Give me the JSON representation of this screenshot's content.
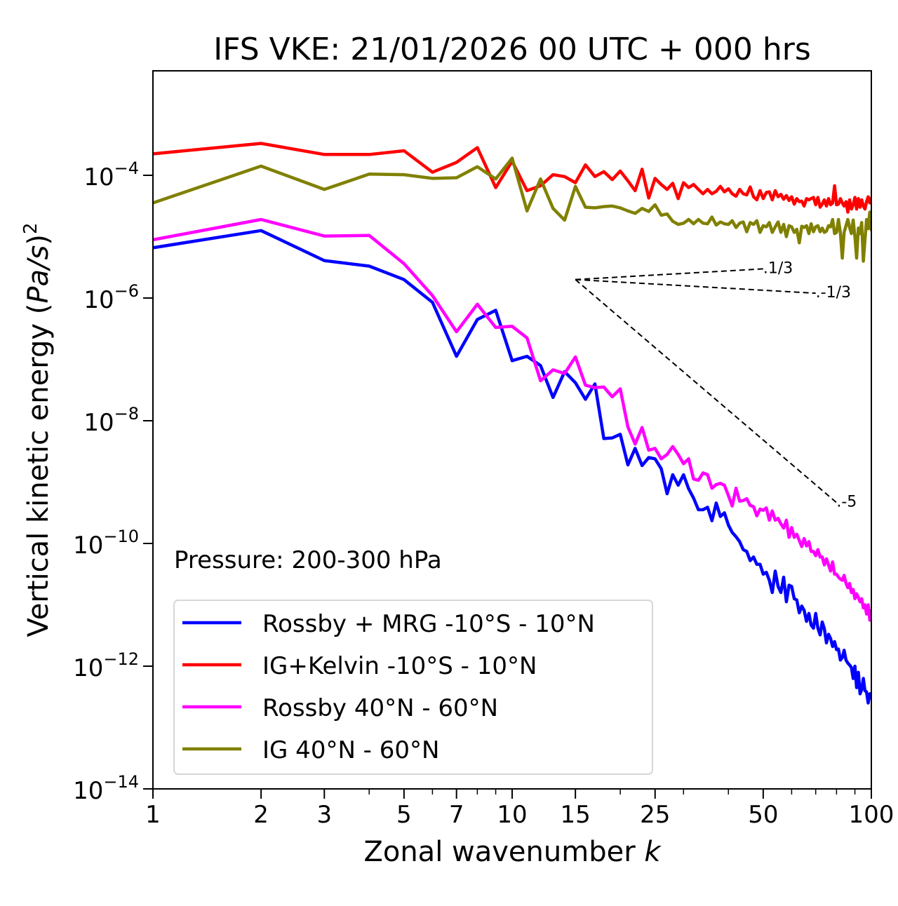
{
  "chart_data": {
    "type": "line",
    "title": "IFS VKE: 21/01/2026 00 UTC + 000 hrs",
    "xlabel": "Zonal wavenumber k",
    "xlabel_prefix": "Zonal wavenumber ",
    "xlabel_var": "k",
    "ylabel_prefix": "Vertical kinetic energy (",
    "ylabel_var": "Pa/s",
    "ylabel_suffix": ")",
    "ylabel_power": "2",
    "xscale": "log",
    "yscale": "log",
    "xlim": [
      1,
      100
    ],
    "ylim": [
      1e-14,
      0.01
    ],
    "grid": false,
    "xticks": [
      1,
      2,
      3,
      5,
      7,
      10,
      15,
      25,
      50,
      100
    ],
    "xtick_labels": [
      "1",
      "2",
      "3",
      "5",
      "7",
      "10",
      "15",
      "25",
      "50",
      "100"
    ],
    "yticks_exp": [
      -4,
      -6,
      -8,
      -10,
      -12,
      -14
    ],
    "ytick_base": "10",
    "annotation": "Pressure: 200-300 hPa",
    "legend_placement": "lower-left",
    "reference_lines": [
      {
        "label": "1/3",
        "slope": 0.3333,
        "k_start": 15,
        "k_end": 50,
        "E_start": 2e-06
      },
      {
        "label": "-1/3",
        "slope": -0.3333,
        "k_start": 15,
        "k_end": 70,
        "E_start": 2e-06
      },
      {
        "label": "-5",
        "slope": -5,
        "k_start": 15,
        "k_end": 80,
        "E_start": 2e-06
      }
    ],
    "x": [
      1,
      2,
      3,
      4,
      5,
      6,
      7,
      8,
      9,
      10,
      11,
      12,
      13,
      14,
      15,
      16,
      17,
      18,
      19,
      20,
      21,
      22,
      23,
      24,
      25,
      26,
      27,
      28,
      29,
      30,
      31,
      32,
      33,
      34,
      35,
      36,
      37,
      38,
      39,
      40,
      41,
      42,
      43,
      44,
      45,
      46,
      47,
      48,
      49,
      50,
      51,
      52,
      53,
      54,
      55,
      56,
      57,
      58,
      59,
      60,
      61,
      62,
      63,
      64,
      65,
      66,
      67,
      68,
      69,
      70,
      71,
      72,
      73,
      74,
      75,
      76,
      77,
      78,
      79,
      80,
      81,
      82,
      83,
      84,
      85,
      86,
      87,
      88,
      89,
      90,
      91,
      92,
      93,
      94,
      95,
      96,
      97,
      98,
      99,
      100
    ],
    "series": [
      {
        "name": "Rossby + MRG -10°S - 10°N",
        "color": "#0000ff",
        "log10_values": [
          -5.18,
          -4.9,
          -5.39,
          -5.48,
          -5.7,
          -6.07,
          -6.95,
          -6.35,
          -6.2,
          -7.02,
          -6.95,
          -7.1,
          -7.62,
          -7.2,
          -7.38,
          -7.65,
          -7.4,
          -8.29,
          -8.28,
          -8.22,
          -8.72,
          -8.45,
          -8.73,
          -8.6,
          -8.62,
          -8.78,
          -9.19,
          -8.88,
          -9.05,
          -8.88,
          -9.11,
          -9.26,
          -9.45,
          -9.45,
          -9.41,
          -9.63,
          -9.34,
          -9.56,
          -9.5,
          -9.7,
          -9.82,
          -9.89,
          -9.97,
          -10.1,
          -10.13,
          -10.28,
          -10.22,
          -10.34,
          -10.34,
          -10.5,
          -10.47,
          -10.6,
          -10.8,
          -10.45,
          -10.7,
          -10.8,
          -10.55,
          -10.95,
          -10.68,
          -10.7,
          -10.9,
          -10.92,
          -11.13,
          -11.02,
          -11.09,
          -11.27,
          -11.14,
          -11.33,
          -11.38,
          -11.14,
          -11.38,
          -11.49,
          -11.28,
          -11.39,
          -11.62,
          -11.48,
          -11.55,
          -11.68,
          -11.6,
          -11.73,
          -11.72,
          -11.9,
          -11.86,
          -11.74,
          -11.9,
          -11.95,
          -11.98,
          -12.02,
          -12.2,
          -12.0,
          -12.35,
          -12.1,
          -12.45,
          -12.38,
          -12.2,
          -12.4,
          -12.42,
          -12.6,
          -12.45,
          -12.5
        ]
      },
      {
        "name": "IG+Kelvin -10°S - 10°N",
        "color": "#ff0000",
        "log10_values": [
          -3.65,
          -3.48,
          -3.66,
          -3.66,
          -3.6,
          -3.95,
          -3.79,
          -3.55,
          -4.2,
          -3.77,
          -4.25,
          -4.17,
          -3.99,
          -4.02,
          -4.12,
          -3.83,
          -4.02,
          -3.94,
          -4.07,
          -3.93,
          -4.09,
          -4.25,
          -3.9,
          -4.37,
          -4.05,
          -4.15,
          -4.23,
          -4.13,
          -4.38,
          -4.12,
          -4.2,
          -4.15,
          -4.23,
          -4.3,
          -4.23,
          -4.3,
          -4.26,
          -4.18,
          -4.27,
          -4.22,
          -4.3,
          -4.34,
          -4.23,
          -4.3,
          -4.32,
          -4.19,
          -4.35,
          -4.4,
          -4.25,
          -4.38,
          -4.28,
          -4.27,
          -4.4,
          -4.25,
          -4.35,
          -4.31,
          -4.39,
          -4.33,
          -4.41,
          -4.35,
          -4.47,
          -4.38,
          -4.43,
          -4.42,
          -4.5,
          -4.38,
          -4.4,
          -4.38,
          -4.36,
          -4.48,
          -4.36,
          -4.52,
          -4.47,
          -4.4,
          -4.5,
          -4.38,
          -4.48,
          -4.45,
          -4.17,
          -4.48,
          -4.47,
          -4.38,
          -4.45,
          -4.5,
          -4.43,
          -4.6,
          -4.4,
          -4.55,
          -4.48,
          -4.36,
          -4.55,
          -4.38,
          -4.52,
          -4.4,
          -4.5,
          -4.55,
          -4.43,
          -4.35,
          -4.45,
          -4.38
        ]
      },
      {
        "name": "Rossby 40°N - 60°N",
        "color": "#ff00ff",
        "log10_values": [
          -5.05,
          -4.72,
          -4.99,
          -4.98,
          -5.44,
          -5.96,
          -6.55,
          -6.1,
          -6.48,
          -6.46,
          -6.65,
          -7.35,
          -7.17,
          -7.23,
          -6.96,
          -7.42,
          -7.46,
          -7.45,
          -7.61,
          -7.48,
          -8.1,
          -8.38,
          -8.11,
          -8.48,
          -8.45,
          -8.62,
          -8.55,
          -8.42,
          -8.55,
          -8.7,
          -8.62,
          -8.95,
          -8.97,
          -8.85,
          -8.88,
          -9.1,
          -9.04,
          -9.02,
          -9.05,
          -9.22,
          -9.39,
          -9.1,
          -9.31,
          -9.3,
          -9.27,
          -9.38,
          -9.4,
          -9.55,
          -9.44,
          -9.46,
          -9.42,
          -9.62,
          -9.47,
          -9.62,
          -9.59,
          -9.68,
          -9.75,
          -9.62,
          -9.9,
          -9.74,
          -9.9,
          -9.85,
          -9.95,
          -10.05,
          -9.92,
          -10.04,
          -9.97,
          -10.13,
          -10.13,
          -10.2,
          -10.1,
          -10.22,
          -10.22,
          -10.35,
          -10.25,
          -10.35,
          -10.45,
          -10.3,
          -10.5,
          -10.5,
          -10.55,
          -10.58,
          -10.6,
          -10.52,
          -10.65,
          -10.72,
          -10.65,
          -10.8,
          -10.75,
          -10.9,
          -10.82,
          -10.88,
          -10.95,
          -10.9,
          -11.05,
          -11.0,
          -11.15,
          -11.0,
          -11.25,
          -11.1
        ]
      },
      {
        "name": "IG 40°N - 60°N",
        "color": "#808000",
        "log10_values": [
          -4.45,
          -3.85,
          -4.23,
          -3.98,
          -3.99,
          -4.05,
          -4.04,
          -3.86,
          -4.06,
          -3.72,
          -4.58,
          -4.06,
          -4.54,
          -4.73,
          -4.18,
          -4.52,
          -4.53,
          -4.51,
          -4.5,
          -4.53,
          -4.58,
          -4.62,
          -4.54,
          -4.59,
          -4.48,
          -4.65,
          -4.63,
          -4.75,
          -4.8,
          -4.78,
          -4.72,
          -4.79,
          -4.72,
          -4.78,
          -4.79,
          -4.68,
          -4.81,
          -4.76,
          -4.79,
          -4.8,
          -4.74,
          -4.85,
          -4.78,
          -4.76,
          -4.92,
          -4.77,
          -4.8,
          -4.74,
          -4.93,
          -4.82,
          -4.84,
          -4.77,
          -4.93,
          -4.84,
          -4.76,
          -4.93,
          -4.8,
          -5.0,
          -4.82,
          -4.84,
          -4.93,
          -4.88,
          -5.1,
          -4.83,
          -4.85,
          -4.82,
          -4.95,
          -4.79,
          -4.92,
          -4.84,
          -4.82,
          -4.92,
          -4.86,
          -4.93,
          -4.91,
          -4.82,
          -4.84,
          -4.72,
          -4.95,
          -4.93,
          -4.72,
          -4.94,
          -5.35,
          -4.93,
          -4.82,
          -4.72,
          -4.85,
          -4.95,
          -4.73,
          -5.0,
          -5.35,
          -4.86,
          -4.95,
          -4.77,
          -5.4,
          -5.05,
          -4.72,
          -4.87,
          -4.6,
          -4.88
        ]
      }
    ]
  }
}
